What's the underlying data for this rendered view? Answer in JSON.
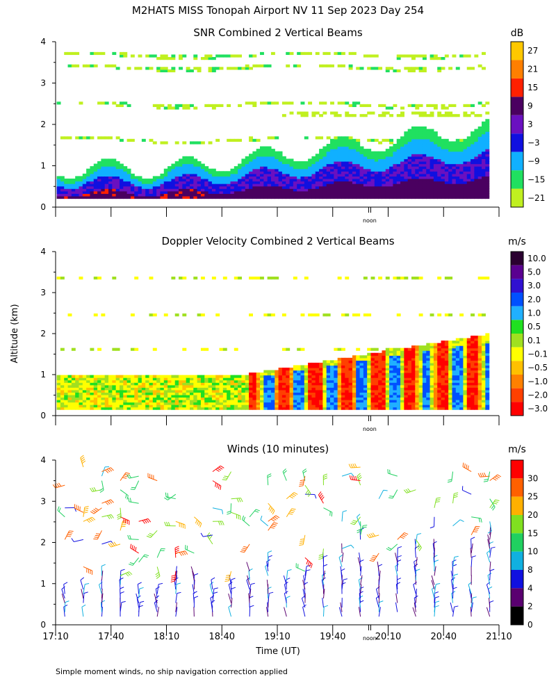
{
  "main_title": "M2HATS MISS Tonopah Airport NV  11 Sep 2023 Day 254",
  "ylabel": "Altitude (km)",
  "xlabel": "Time (UT)",
  "footnote": "Simple moment winds, no ship navigation correction applied",
  "noon_label": "noon",
  "time_ticks": [
    "17:10",
    "17:40",
    "18:10",
    "18:40",
    "19:10",
    "19:40",
    "20:10",
    "20:40",
    "21:10"
  ],
  "chart_data": [
    {
      "type": "heatmap",
      "title": "SNR Combined 2 Vertical Beams",
      "units": "dB",
      "x_range_hours": [
        17.1667,
        21.1667
      ],
      "ylim": [
        0,
        4
      ],
      "yticks": [
        "0",
        "1",
        "2",
        "3",
        "4"
      ],
      "colorbar": {
        "labels": [
          "27",
          "21",
          "15",
          "9",
          "3",
          "−3",
          "−9",
          "−15",
          "−21"
        ],
        "colors": [
          "#ffc800",
          "#ff7f00",
          "#ff2000",
          "#4a0060",
          "#6a10c0",
          "#1010e0",
          "#10b0ff",
          "#20e060",
          "#c0f020"
        ]
      },
      "notes": "Strong returns (purple/blue) below ~1 km in morning, deepening convective boundary layer reaching ~2.2 km by 21:00; scattered weak (green) echo layers near 1.6, 2.4, 3.3 and 3.6 km."
    },
    {
      "type": "heatmap",
      "title": "Doppler Velocity Combined 2 Vertical Beams",
      "units": "m/s",
      "x_range_hours": [
        17.1667,
        21.1667
      ],
      "ylim": [
        0,
        4
      ],
      "yticks": [
        "0",
        "1",
        "2",
        "3",
        "4"
      ],
      "colorbar": {
        "labels": [
          "10.0",
          "5.0",
          "3.0",
          "2.0",
          "1.0",
          "0.5",
          "0.1",
          "−0.1",
          "−0.5",
          "−1.0",
          "−2.0",
          "−3.0"
        ],
        "colors": [
          "#2a0030",
          "#5a0090",
          "#3010d0",
          "#0050ff",
          "#20b0ff",
          "#20e020",
          "#a0e020",
          "#ffff00",
          "#ffc000",
          "#ff8000",
          "#ff4000",
          "#ff0000"
        ]
      },
      "notes": "Near-zero (yellow/green) velocities below 1 km early; strong alternating updraft/downdraft columns up to ~1.5 km after 19:30 and ~2.2 km by 21:00."
    },
    {
      "type": "wind_barbs",
      "title": "Winds (10 minutes)",
      "units": "m/s",
      "x_range_hours": [
        17.1667,
        21.1667
      ],
      "ylim": [
        0,
        4
      ],
      "yticks": [
        "0",
        "1",
        "2",
        "3",
        "4"
      ],
      "colorbar": {
        "labels": [
          "30",
          "25",
          "20",
          "15",
          "10",
          "8",
          "4",
          "2",
          "0"
        ],
        "colors": [
          "#ff0000",
          "#ff6000",
          "#ffb000",
          "#80e020",
          "#20d060",
          "#10b0e0",
          "#1010e0",
          "#5a0070",
          "#000000"
        ]
      },
      "interval_minutes": 10,
      "notes": "Wind barb profiles every 10 minutes; low-level winds mostly 2-8 m/s, upper levels 10-30 m/s with increasing coverage after 20:00."
    }
  ]
}
